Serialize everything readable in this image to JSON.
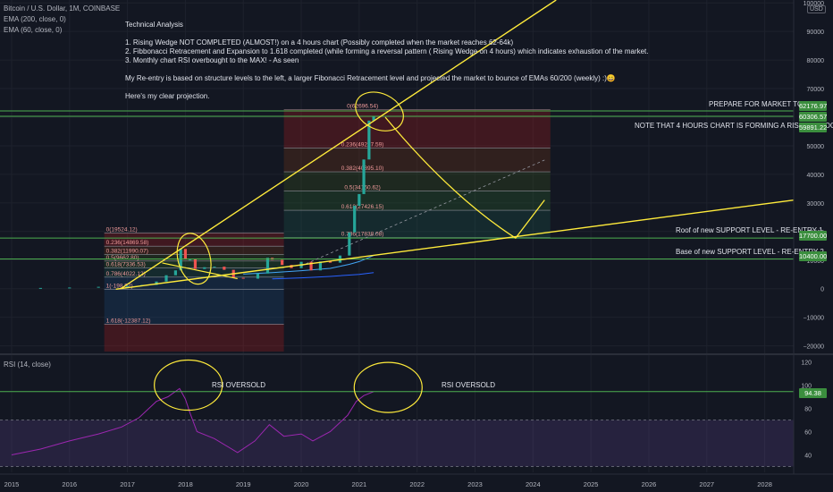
{
  "header": {
    "symbol": "Bitcoin / U.S. Dollar, 1M, COINBASE",
    "ema200": "EMA (200, close, 0)",
    "ema60": "EMA (60, close, 0)",
    "rsi_label": "RSI (14, close)",
    "currency_badge": "USD"
  },
  "analysis": {
    "title": "Technical Analysis",
    "line1": "1. Rising Wedge NOT COMPLETED (ALMOST!) on a 4 hours chart (Possibly completed when the market reaches 62-64k)",
    "line2": "2. Fibbonacci Retracement and Expansion to 1.618 completed (while forming a reversal pattern ( Rising Wedge on 4 hours) which indicates exhaustion of the market.",
    "line3": "3. Monthly chart RSI overbought to the MAX! - As seen",
    "line4": "My Re-entry is based on structure levels to the left, a larger Fibonacci Retracement level and projected the market to bounce of EMAs 60/200 (weekly) :)😀",
    "line5": "Here's my clear projection."
  },
  "annotations": {
    "prepare": "PREPARE FOR MARKET TO FALL",
    "wedge": "NOTE THAT 4 HOURS CHART IS FORMING A RISING WEDGE",
    "roof": "Roof of new SUPPORT LEVEL - RE-ENTRY 1",
    "base": "Base of new SUPPORT LEVEL - RE-ENTRY 2",
    "rsi1": "RSI OVERSOLD",
    "rsi2": "RSI OVERSOLD"
  },
  "colors": {
    "background": "#131722",
    "level_green": "#4caf50",
    "drawing_yellow": "#ffeb3b",
    "rsi_line": "#9c27b0",
    "ema_blue": "#2962ff"
  },
  "chart_data": {
    "type": "line",
    "title": "Bitcoin / U.S. Dollar, 1M, COINBASE",
    "x_ticks": [
      "2015",
      "2016",
      "2017",
      "2018",
      "2019",
      "2020",
      "2021",
      "2022",
      "2023",
      "2024",
      "2025",
      "2026",
      "2027",
      "2028"
    ],
    "y_ticks": [
      100000,
      90000,
      80000,
      70000,
      60000,
      50000,
      40000,
      30000,
      20000,
      10000,
      0,
      -10000,
      -20000
    ],
    "y_tick_labels": [
      "100000",
      "90000",
      "80000",
      "70000",
      "60000",
      "50000",
      "40000",
      "30000",
      "20000",
      "10000",
      "0",
      "−10000",
      "−20000"
    ],
    "ylim": [
      -22000,
      101000
    ],
    "xlim": [
      2014.8,
      2028.5
    ],
    "price_tags": [
      {
        "value": 62176.97,
        "label": "62176.97"
      },
      {
        "value": 60306.57,
        "label": "60306.57"
      },
      {
        "value": 59891.22,
        "label": "59891.22"
      },
      {
        "value": 17700,
        "label": "17700.00"
      },
      {
        "value": 10400,
        "label": "10400.00"
      }
    ],
    "series": [
      {
        "name": "BTCUSD",
        "points": [
          [
            2015.0,
            250
          ],
          [
            2015.5,
            260
          ],
          [
            2016.0,
            400
          ],
          [
            2016.5,
            650
          ],
          [
            2017.0,
            1000
          ],
          [
            2017.25,
            1300
          ],
          [
            2017.5,
            2500
          ],
          [
            2017.67,
            4700
          ],
          [
            2017.83,
            6400
          ],
          [
            2017.92,
            13900
          ],
          [
            2018.0,
            10200
          ],
          [
            2018.08,
            10300
          ],
          [
            2018.17,
            6900
          ],
          [
            2018.33,
            7500
          ],
          [
            2018.5,
            7700
          ],
          [
            2018.67,
            6600
          ],
          [
            2018.83,
            3800
          ],
          [
            2019.0,
            3500
          ],
          [
            2019.25,
            5300
          ],
          [
            2019.42,
            10800
          ],
          [
            2019.5,
            10100
          ],
          [
            2019.67,
            8300
          ],
          [
            2019.83,
            7200
          ],
          [
            2020.0,
            9400
          ],
          [
            2020.17,
            6400
          ],
          [
            2020.33,
            9500
          ],
          [
            2020.5,
            9100
          ],
          [
            2020.67,
            11600
          ],
          [
            2020.83,
            19700
          ],
          [
            2020.92,
            29000
          ],
          [
            2021.0,
            33100
          ],
          [
            2021.08,
            45200
          ],
          [
            2021.17,
            58800
          ],
          [
            2021.25,
            60306
          ]
        ]
      },
      {
        "name": "EMA (60, close, 0)",
        "points": [
          [
            2019.0,
            5100
          ],
          [
            2019.5,
            5600
          ],
          [
            2020.0,
            6300
          ],
          [
            2020.5,
            7100
          ],
          [
            2020.83,
            8500
          ],
          [
            2021.0,
            9500
          ],
          [
            2021.25,
            11600
          ]
        ]
      },
      {
        "name": "EMA (200, close, 0)",
        "points": [
          [
            2019.5,
            3400
          ],
          [
            2020.0,
            3800
          ],
          [
            2020.5,
            4300
          ],
          [
            2021.0,
            5000
          ],
          [
            2021.25,
            5600
          ]
        ]
      }
    ],
    "fib_small": {
      "x_range": [
        2016.6,
        2019.7
      ],
      "levels": [
        {
          "ratio": 0,
          "value": 19524.12,
          "label": "0(19524.12)"
        },
        {
          "ratio": 0.236,
          "value": 14869.58,
          "label": "0.236(14869.58)"
        },
        {
          "ratio": 0.382,
          "value": 11990.07,
          "label": "0.382(11990.07)"
        },
        {
          "ratio": 0.5,
          "value": 9662.8,
          "label": "0.5(9662.80)"
        },
        {
          "ratio": 0.618,
          "value": 7336.53,
          "label": "0.618(7336.53)"
        },
        {
          "ratio": 0.786,
          "value": 4022.12,
          "label": "0.786(4022.12)"
        },
        {
          "ratio": 1,
          "value": -198.52,
          "label": "1(-198.52)"
        },
        {
          "ratio": 1.618,
          "value": -12387.12,
          "label": "1.618(-12387.12)"
        }
      ]
    },
    "fib_large": {
      "x_range": [
        2019.7,
        2024.3
      ],
      "levels": [
        {
          "ratio": 0,
          "value": 62696.54,
          "label": "0(62696.54)"
        },
        {
          "ratio": 0.236,
          "value": 49227.59,
          "label": "0.236(49227.59)"
        },
        {
          "ratio": 0.382,
          "value": 40895.1,
          "label": "0.382(40895.10)"
        },
        {
          "ratio": 0.5,
          "value": 34160.62,
          "label": "0.5(34160.62)"
        },
        {
          "ratio": 0.618,
          "value": 27426.15,
          "label": "0.618(27426.15)"
        },
        {
          "ratio": 0.786,
          "value": 17838.08,
          "label": "0.786(17838.08)"
        }
      ]
    },
    "rsi": {
      "name": "RSI (14, close)",
      "ylim": [
        25,
        125
      ],
      "y_ticks": [
        120,
        100,
        80,
        60,
        40
      ],
      "levels": [
        70,
        30
      ],
      "tag": {
        "value": 94.38,
        "label": "94.38"
      },
      "points": [
        [
          2015.0,
          40
        ],
        [
          2015.5,
          45
        ],
        [
          2016.0,
          52
        ],
        [
          2016.5,
          58
        ],
        [
          2016.9,
          64
        ],
        [
          2017.2,
          72
        ],
        [
          2017.5,
          86
        ],
        [
          2017.7,
          90
        ],
        [
          2017.9,
          97
        ],
        [
          2018.0,
          88
        ],
        [
          2018.08,
          76
        ],
        [
          2018.2,
          60
        ],
        [
          2018.5,
          54
        ],
        [
          2018.9,
          42
        ],
        [
          2019.2,
          52
        ],
        [
          2019.45,
          66
        ],
        [
          2019.7,
          56
        ],
        [
          2020.0,
          58
        ],
        [
          2020.2,
          52
        ],
        [
          2020.5,
          60
        ],
        [
          2020.8,
          74
        ],
        [
          2020.95,
          86
        ],
        [
          2021.08,
          91
        ],
        [
          2021.25,
          94.38
        ]
      ]
    }
  }
}
